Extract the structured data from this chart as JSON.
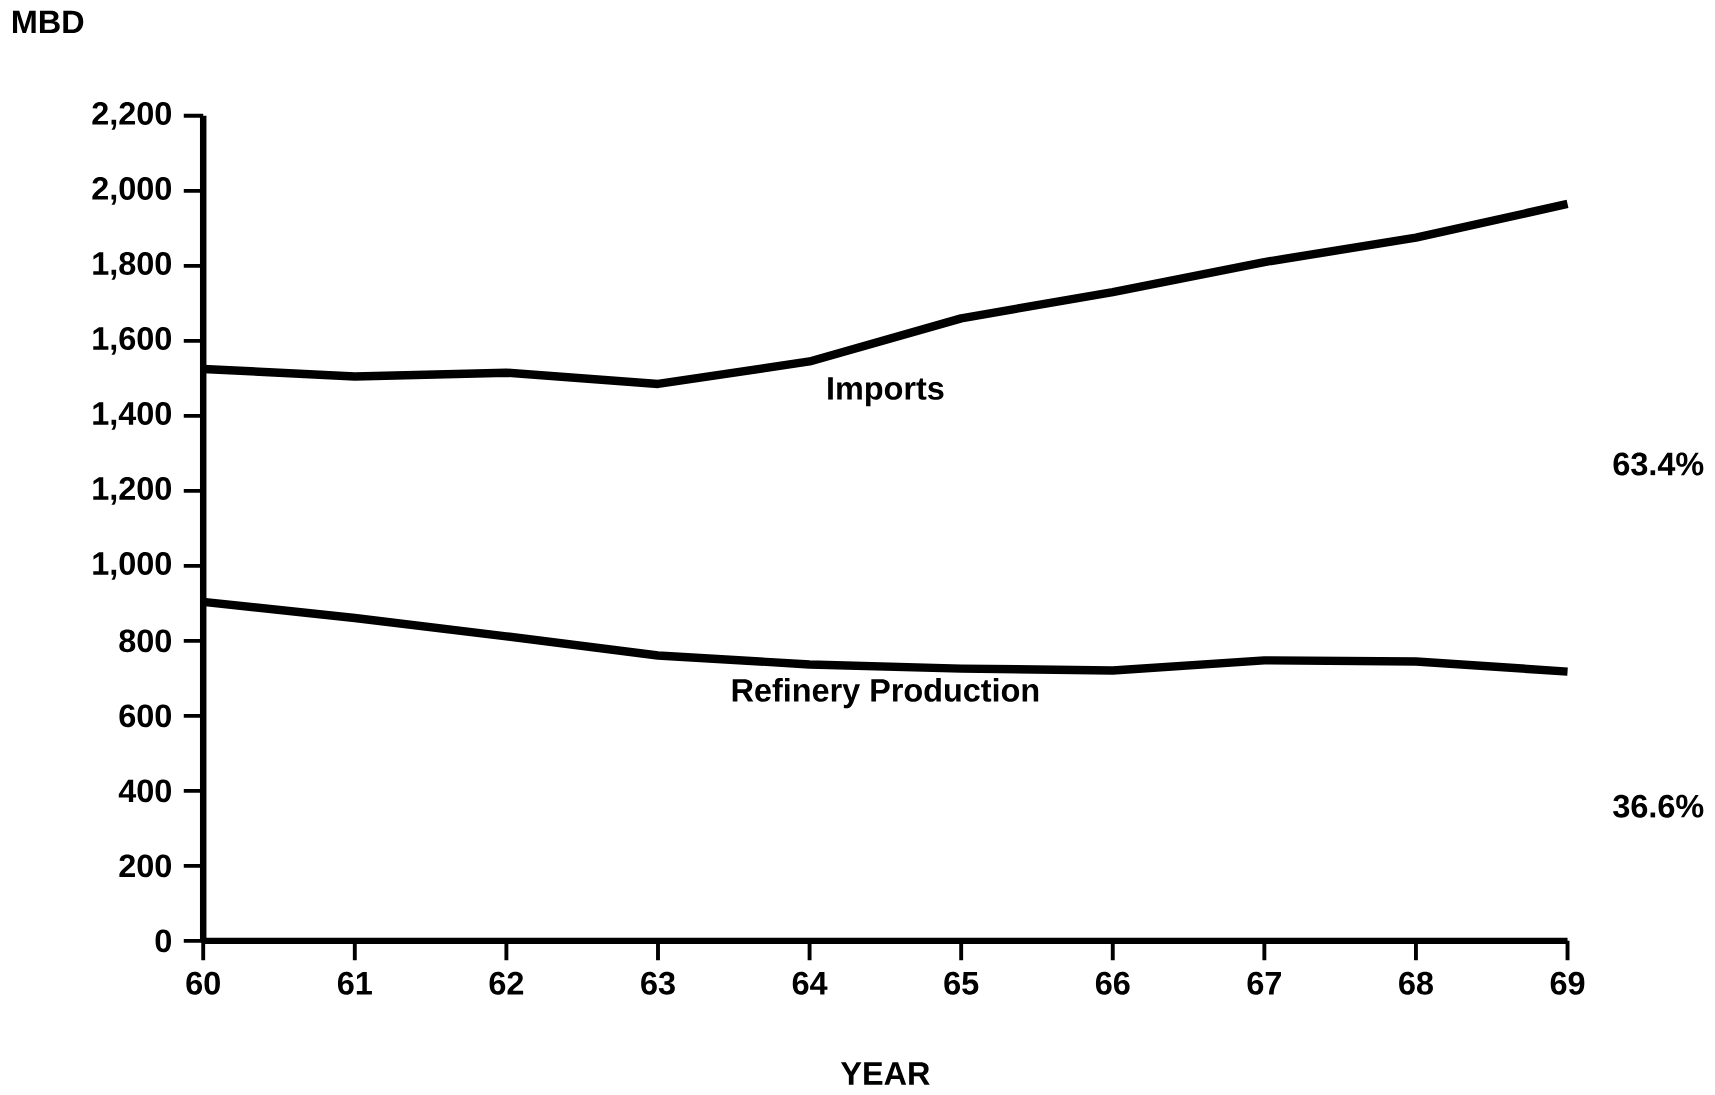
{
  "chart_data": {
    "type": "line",
    "xlabel": "YEAR",
    "ylabel": "MBD",
    "x": [
      60,
      61,
      62,
      63,
      64,
      65,
      66,
      67,
      68,
      69
    ],
    "series": [
      {
        "name": "Imports",
        "color": "#000000",
        "values": [
          1525,
          1505,
          1515,
          1485,
          1545,
          1660,
          1730,
          1810,
          1875,
          1965
        ]
      },
      {
        "name": "Refinery Production",
        "color": "#000000",
        "values": [
          904,
          861,
          812,
          761,
          737,
          726,
          721,
          748,
          745,
          718
        ]
      }
    ],
    "xlim": [
      60,
      69
    ],
    "xticks": [
      60,
      61,
      62,
      63,
      64,
      65,
      66,
      67,
      68,
      69
    ],
    "ylim": [
      0,
      2200
    ],
    "yticks": [
      0,
      200,
      400,
      600,
      800,
      {
        "value": 1000,
        "label": "1,000"
      },
      {
        "value": 1200,
        "label": "1,200"
      },
      {
        "value": 1400,
        "label": "1,400"
      },
      {
        "value": 1600,
        "label": "1,600"
      },
      {
        "value": 1800,
        "label": "1,800"
      },
      {
        "value": 2000,
        "label": "2,000"
      },
      {
        "value": 2200,
        "label": "2,200"
      }
    ],
    "annotations": [
      "63.4%",
      "36.6%"
    ],
    "marker": "none",
    "line_style": "solid",
    "legend": false,
    "grid": false
  }
}
